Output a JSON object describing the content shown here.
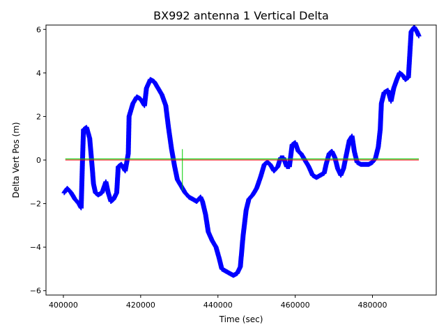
{
  "chart_data": {
    "type": "scatter",
    "title": "BX992 antenna 1 Vertical Delta",
    "xlabel": "Time (sec)",
    "ylabel": "Delta Vert Pos (m)",
    "xlim": [
      395500,
      496500
    ],
    "ylim": [
      -6.2,
      6.2
    ],
    "xticks": [
      400000,
      420000,
      440000,
      460000,
      480000
    ],
    "xtick_labels": [
      "400000",
      "420000",
      "440000",
      "460000",
      "480000"
    ],
    "yticks": [
      -6,
      -4,
      -2,
      0,
      2,
      4,
      6
    ],
    "ytick_labels": [
      "−6",
      "−4",
      "−2",
      "0",
      "2",
      "4",
      "6"
    ],
    "grid": false,
    "marker_color": "#0000ff",
    "reference_color": "#ff0000",
    "sigma_color": "#00cc00",
    "series": [
      {
        "marker": "+",
        "color": "#0000ff",
        "points": [
          [
            400200,
            -1.5
          ],
          [
            401000,
            -1.3
          ],
          [
            402000,
            -1.5
          ],
          [
            403000,
            -1.8
          ],
          [
            404000,
            -2.0
          ],
          [
            404600,
            -2.2
          ],
          [
            404900,
            -0.3
          ],
          [
            405200,
            1.4
          ],
          [
            406000,
            1.5
          ],
          [
            406800,
            1.0
          ],
          [
            407300,
            0.0
          ],
          [
            407800,
            -1.1
          ],
          [
            408300,
            -1.5
          ],
          [
            409000,
            -1.6
          ],
          [
            410000,
            -1.5
          ],
          [
            411000,
            -1.0
          ],
          [
            411600,
            -1.5
          ],
          [
            412300,
            -1.9
          ],
          [
            413000,
            -1.8
          ],
          [
            413800,
            -1.5
          ],
          [
            414200,
            -0.3
          ],
          [
            415000,
            -0.2
          ],
          [
            416000,
            -0.5
          ],
          [
            416800,
            0.3
          ],
          [
            417000,
            2.0
          ],
          [
            418000,
            2.6
          ],
          [
            419000,
            2.9
          ],
          [
            420000,
            2.8
          ],
          [
            421000,
            2.5
          ],
          [
            421500,
            3.3
          ],
          [
            422500,
            3.7
          ],
          [
            423500,
            3.6
          ],
          [
            424500,
            3.3
          ],
          [
            425500,
            3.0
          ],
          [
            426500,
            2.5
          ],
          [
            427200,
            1.5
          ],
          [
            428000,
            0.5
          ],
          [
            428800,
            -0.3
          ],
          [
            429500,
            -0.9
          ],
          [
            430500,
            -1.2
          ],
          [
            431500,
            -1.5
          ],
          [
            432500,
            -1.7
          ],
          [
            433500,
            -1.8
          ],
          [
            434500,
            -1.9
          ],
          [
            435500,
            -1.7
          ],
          [
            436000,
            -1.9
          ],
          [
            436800,
            -2.5
          ],
          [
            437500,
            -3.3
          ],
          [
            438500,
            -3.7
          ],
          [
            439500,
            -4.0
          ],
          [
            440300,
            -4.5
          ],
          [
            441000,
            -5.0
          ],
          [
            442000,
            -5.1
          ],
          [
            443000,
            -5.2
          ],
          [
            444000,
            -5.3
          ],
          [
            445000,
            -5.2
          ],
          [
            445800,
            -4.9
          ],
          [
            446500,
            -3.5
          ],
          [
            447300,
            -2.3
          ],
          [
            448000,
            -1.8
          ],
          [
            449000,
            -1.6
          ],
          [
            450000,
            -1.3
          ],
          [
            451000,
            -0.8
          ],
          [
            452000,
            -0.2
          ],
          [
            452800,
            -0.1
          ],
          [
            453500,
            -0.2
          ],
          [
            454500,
            -0.5
          ],
          [
            455500,
            -0.3
          ],
          [
            456200,
            0.1
          ],
          [
            457000,
            0.1
          ],
          [
            457800,
            -0.3
          ],
          [
            458500,
            -0.3
          ],
          [
            459200,
            0.7
          ],
          [
            460000,
            0.8
          ],
          [
            460800,
            0.4
          ],
          [
            461500,
            0.3
          ],
          [
            462500,
            0.0
          ],
          [
            463500,
            -0.3
          ],
          [
            464500,
            -0.7
          ],
          [
            465500,
            -0.8
          ],
          [
            466500,
            -0.7
          ],
          [
            467500,
            -0.6
          ],
          [
            468000,
            -0.2
          ],
          [
            468800,
            0.3
          ],
          [
            469500,
            0.4
          ],
          [
            470300,
            0.1
          ],
          [
            471000,
            -0.4
          ],
          [
            471800,
            -0.7
          ],
          [
            472500,
            -0.4
          ],
          [
            473300,
            0.3
          ],
          [
            474000,
            0.9
          ],
          [
            474700,
            1.1
          ],
          [
            475300,
            0.4
          ],
          [
            476000,
            -0.1
          ],
          [
            477000,
            -0.2
          ],
          [
            478000,
            -0.2
          ],
          [
            479000,
            -0.2
          ],
          [
            480000,
            -0.1
          ],
          [
            480800,
            0.1
          ],
          [
            481500,
            0.6
          ],
          [
            482000,
            1.4
          ],
          [
            482300,
            2.6
          ],
          [
            483000,
            3.1
          ],
          [
            484000,
            3.2
          ],
          [
            484800,
            2.7
          ],
          [
            485500,
            3.3
          ],
          [
            486300,
            3.7
          ],
          [
            487000,
            4.0
          ],
          [
            487800,
            3.9
          ],
          [
            488500,
            3.7
          ],
          [
            489300,
            3.8
          ],
          [
            489700,
            5.0
          ],
          [
            490000,
            5.9
          ],
          [
            490800,
            6.1
          ],
          [
            491500,
            5.9
          ],
          [
            492000,
            5.7
          ]
        ]
      }
    ],
    "reference_line": {
      "x": [
        400500,
        492000
      ],
      "y": [
        0,
        0
      ]
    },
    "sigma_line": {
      "x": [
        400500,
        492000
      ],
      "y": [
        0.05,
        0.05
      ]
    },
    "sigma_spike": {
      "x": 430800,
      "y": [
        -1.4,
        0.5
      ]
    }
  }
}
